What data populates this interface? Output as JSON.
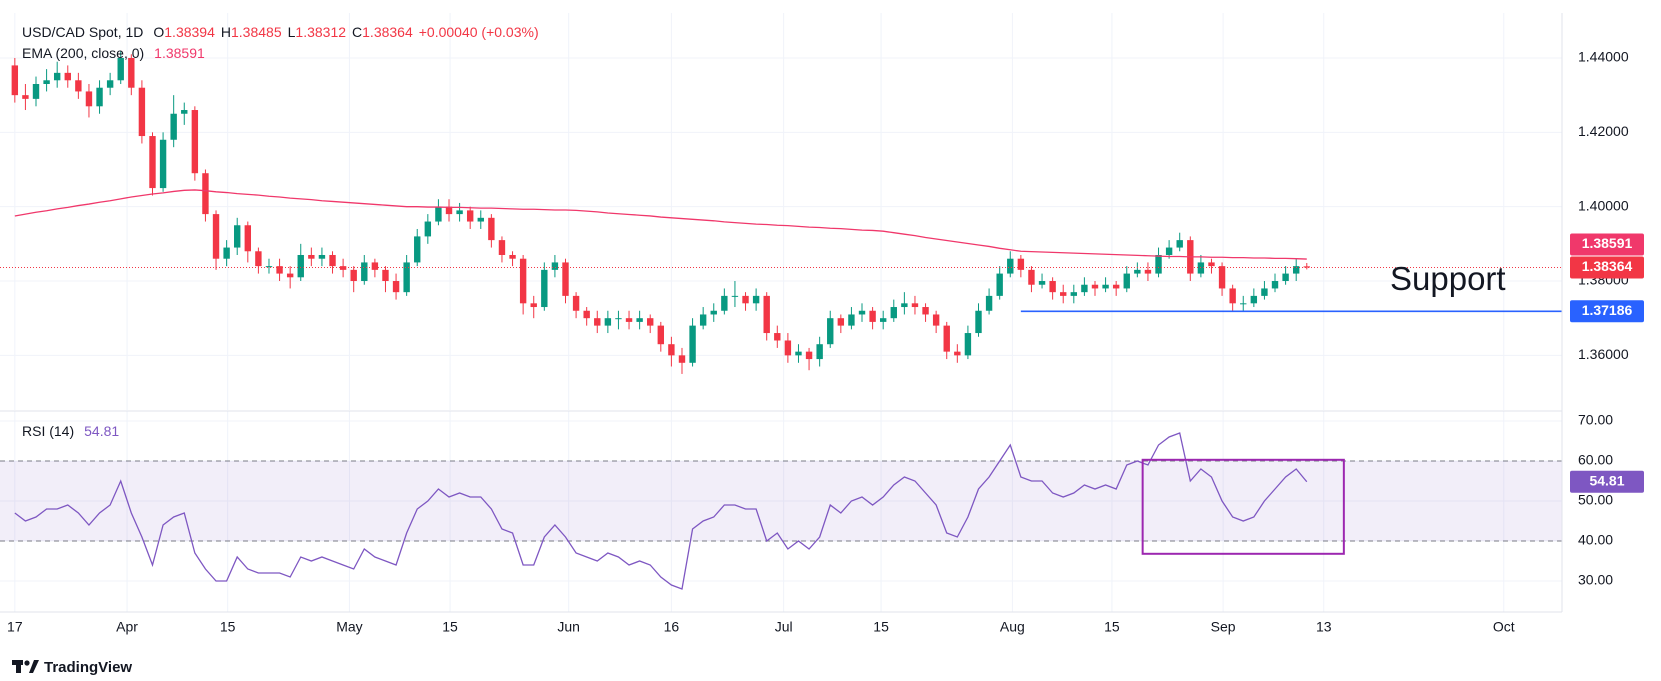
{
  "chart_data": {
    "type": "candlestick",
    "title": "USD/CAD Spot, 1D",
    "ohlc_labels": [
      "O",
      "H",
      "L",
      "C"
    ],
    "change": "+0.00040 (+0.03%)",
    "color_up": "#089981",
    "color_down": "#f23645",
    "grid": true,
    "xlim": [
      -1.4,
      146.1
    ],
    "xticks": [
      {
        "value": 0,
        "label": "17"
      },
      {
        "value": 10.6,
        "label": "Apr"
      },
      {
        "value": 20.1,
        "label": "15"
      },
      {
        "value": 31.6,
        "label": "May"
      },
      {
        "value": 41.1,
        "label": "15"
      },
      {
        "value": 52.3,
        "label": "Jun"
      },
      {
        "value": 62,
        "label": "16"
      },
      {
        "value": 72.6,
        "label": "Jul"
      },
      {
        "value": 81.8,
        "label": "15"
      },
      {
        "value": 94.2,
        "label": "Aug"
      },
      {
        "value": 103.6,
        "label": "15"
      },
      {
        "value": 114.1,
        "label": "Sep"
      },
      {
        "value": 123.6,
        "label": "13"
      },
      {
        "value": 140.6,
        "label": "Oct"
      }
    ],
    "ylim": [
      1.3453,
      1.4521
    ],
    "yticks": [
      {
        "value": 1.44,
        "label": "1.44000"
      },
      {
        "value": 1.42,
        "label": "1.42000"
      },
      {
        "value": 1.4,
        "label": "1.40000"
      },
      {
        "value": 1.38,
        "label": "1.38000"
      },
      {
        "value": 1.36,
        "label": "1.36000"
      }
    ],
    "open": [
      1.438,
      1.43,
      1.429,
      1.433,
      1.434,
      1.436,
      1.434,
      1.431,
      1.427,
      1.432,
      1.434,
      1.44,
      1.432,
      1.419,
      1.405,
      1.418,
      1.425,
      1.426,
      1.409,
      1.398,
      1.386,
      1.389,
      1.395,
      1.388,
      1.384,
      1.384,
      1.382,
      1.381,
      1.387,
      1.386,
      1.387,
      1.384,
      1.383,
      1.38,
      1.385,
      1.383,
      1.38,
      1.377,
      1.385,
      1.392,
      1.396,
      1.4,
      1.398,
      1.399,
      1.396,
      1.397,
      1.391,
      1.387,
      1.386,
      1.374,
      1.373,
      1.383,
      1.385,
      1.376,
      1.372,
      1.37,
      1.368,
      1.37,
      1.37,
      1.369,
      1.37,
      1.368,
      1.363,
      1.36,
      1.358,
      1.368,
      1.371,
      1.372,
      1.376,
      1.376,
      1.374,
      1.376,
      1.366,
      1.364,
      1.36,
      1.361,
      1.359,
      1.363,
      1.37,
      1.368,
      1.371,
      1.372,
      1.369,
      1.37,
      1.373,
      1.374,
      1.373,
      1.371,
      1.368,
      1.361,
      1.36,
      1.366,
      1.372,
      1.376,
      1.382,
      1.386,
      1.383,
      1.379,
      1.38,
      1.377,
      1.376,
      1.377,
      1.379,
      1.378,
      1.379,
      1.378,
      1.382,
      1.383,
      1.382,
      1.387,
      1.389,
      1.391,
      1.382,
      1.385,
      1.384,
      1.378,
      1.374,
      1.374,
      1.376,
      1.378,
      1.38,
      1.382,
      1.38394
    ],
    "high": [
      1.44,
      1.433,
      1.435,
      1.437,
      1.439,
      1.438,
      1.436,
      1.433,
      1.434,
      1.436,
      1.442,
      1.441,
      1.434,
      1.42,
      1.42,
      1.43,
      1.428,
      1.427,
      1.41,
      1.399,
      1.391,
      1.397,
      1.396,
      1.389,
      1.386,
      1.386,
      1.384,
      1.39,
      1.389,
      1.389,
      1.388,
      1.386,
      1.384,
      1.387,
      1.386,
      1.384,
      1.382,
      1.387,
      1.394,
      1.398,
      1.402,
      1.402,
      1.401,
      1.4,
      1.399,
      1.398,
      1.392,
      1.388,
      1.387,
      1.376,
      1.385,
      1.387,
      1.386,
      1.377,
      1.373,
      1.372,
      1.372,
      1.372,
      1.372,
      1.372,
      1.371,
      1.369,
      1.365,
      1.362,
      1.37,
      1.373,
      1.374,
      1.378,
      1.38,
      1.377,
      1.378,
      1.377,
      1.368,
      1.366,
      1.363,
      1.362,
      1.365,
      1.372,
      1.371,
      1.373,
      1.374,
      1.373,
      1.372,
      1.375,
      1.377,
      1.376,
      1.374,
      1.372,
      1.369,
      1.363,
      1.368,
      1.374,
      1.378,
      1.384,
      1.388,
      1.387,
      1.384,
      1.382,
      1.381,
      1.379,
      1.379,
      1.381,
      1.38,
      1.381,
      1.38,
      1.384,
      1.385,
      1.385,
      1.389,
      1.391,
      1.393,
      1.392,
      1.387,
      1.386,
      1.385,
      1.379,
      1.376,
      1.378,
      1.38,
      1.382,
      1.384,
      1.386,
      1.38485
    ],
    "low": [
      1.428,
      1.426,
      1.427,
      1.431,
      1.432,
      1.432,
      1.429,
      1.424,
      1.425,
      1.43,
      1.433,
      1.43,
      1.417,
      1.403,
      1.404,
      1.416,
      1.422,
      1.407,
      1.396,
      1.383,
      1.384,
      1.387,
      1.385,
      1.382,
      1.382,
      1.38,
      1.378,
      1.38,
      1.384,
      1.384,
      1.382,
      1.381,
      1.377,
      1.379,
      1.381,
      1.377,
      1.375,
      1.376,
      1.384,
      1.39,
      1.395,
      1.396,
      1.396,
      1.394,
      1.394,
      1.389,
      1.385,
      1.384,
      1.371,
      1.37,
      1.372,
      1.381,
      1.374,
      1.37,
      1.368,
      1.366,
      1.366,
      1.367,
      1.367,
      1.367,
      1.366,
      1.361,
      1.357,
      1.355,
      1.357,
      1.367,
      1.369,
      1.371,
      1.373,
      1.372,
      1.372,
      1.364,
      1.362,
      1.358,
      1.358,
      1.356,
      1.357,
      1.362,
      1.366,
      1.367,
      1.369,
      1.367,
      1.367,
      1.369,
      1.371,
      1.371,
      1.369,
      1.366,
      1.359,
      1.358,
      1.359,
      1.365,
      1.371,
      1.375,
      1.381,
      1.381,
      1.377,
      1.378,
      1.375,
      1.374,
      1.374,
      1.376,
      1.376,
      1.377,
      1.376,
      1.377,
      1.381,
      1.38,
      1.381,
      1.386,
      1.388,
      1.38,
      1.381,
      1.382,
      1.376,
      1.372,
      1.372,
      1.373,
      1.375,
      1.377,
      1.379,
      1.38,
      1.38312
    ],
    "close": [
      1.43,
      1.429,
      1.433,
      1.434,
      1.436,
      1.434,
      1.431,
      1.427,
      1.432,
      1.434,
      1.44,
      1.432,
      1.419,
      1.405,
      1.418,
      1.425,
      1.426,
      1.409,
      1.398,
      1.386,
      1.389,
      1.395,
      1.388,
      1.384,
      1.384,
      1.382,
      1.381,
      1.387,
      1.386,
      1.387,
      1.384,
      1.383,
      1.38,
      1.385,
      1.383,
      1.38,
      1.377,
      1.385,
      1.392,
      1.396,
      1.4,
      1.398,
      1.399,
      1.396,
      1.397,
      1.391,
      1.387,
      1.386,
      1.374,
      1.373,
      1.383,
      1.385,
      1.376,
      1.372,
      1.37,
      1.368,
      1.37,
      1.37,
      1.369,
      1.37,
      1.368,
      1.363,
      1.36,
      1.358,
      1.368,
      1.371,
      1.372,
      1.376,
      1.376,
      1.374,
      1.376,
      1.366,
      1.364,
      1.36,
      1.361,
      1.359,
      1.363,
      1.37,
      1.368,
      1.371,
      1.372,
      1.369,
      1.37,
      1.373,
      1.374,
      1.373,
      1.371,
      1.368,
      1.361,
      1.36,
      1.366,
      1.372,
      1.376,
      1.382,
      1.386,
      1.383,
      1.379,
      1.38,
      1.377,
      1.376,
      1.377,
      1.379,
      1.378,
      1.379,
      1.378,
      1.382,
      1.383,
      1.382,
      1.387,
      1.389,
      1.391,
      1.382,
      1.385,
      1.384,
      1.378,
      1.374,
      1.374,
      1.376,
      1.378,
      1.38,
      1.382,
      1.384,
      1.38364
    ],
    "ema": {
      "name": "EMA (200, close, 0)",
      "color": "#f0386b",
      "values": [
        1.3975,
        1.398,
        1.3985,
        1.3989,
        1.3994,
        1.3998,
        1.4003,
        1.4007,
        1.4012,
        1.4016,
        1.4021,
        1.4026,
        1.403,
        1.4034,
        1.4037,
        1.4041,
        1.4044,
        1.4045,
        1.4043,
        1.404,
        1.4038,
        1.4035,
        1.4033,
        1.4031,
        1.4028,
        1.4026,
        1.4023,
        1.4021,
        1.4019,
        1.4016,
        1.4014,
        1.4012,
        1.401,
        1.4008,
        1.4006,
        1.4004,
        1.4002,
        1.4,
        1.4,
        1.3999,
        1.3999,
        1.3998,
        1.3998,
        1.3997,
        1.3996,
        1.3996,
        1.3995,
        1.3994,
        1.3993,
        1.3993,
        1.3992,
        1.3991,
        1.3991,
        1.399,
        1.3988,
        1.3986,
        1.3983,
        1.3981,
        1.3979,
        1.3977,
        1.3975,
        1.3972,
        1.397,
        1.3968,
        1.3966,
        1.3964,
        1.3962,
        1.3959,
        1.3957,
        1.3955,
        1.3953,
        1.3952,
        1.395,
        1.3949,
        1.3947,
        1.3945,
        1.3944,
        1.3942,
        1.3941,
        1.3939,
        1.3937,
        1.3936,
        1.3934,
        1.393,
        1.3926,
        1.3922,
        1.3917,
        1.3913,
        1.3909,
        1.3905,
        1.3901,
        1.3897,
        1.3893,
        1.3888,
        1.3884,
        1.388,
        1.3879,
        1.3878,
        1.3877,
        1.3876,
        1.3875,
        1.3874,
        1.3873,
        1.3872,
        1.3871,
        1.387,
        1.3869,
        1.3868,
        1.3867,
        1.3866,
        1.3866,
        1.3865,
        1.3865,
        1.3864,
        1.3864,
        1.3863,
        1.3863,
        1.3862,
        1.3862,
        1.3861,
        1.3861,
        1.386,
        1.38591
      ]
    },
    "support": {
      "label": "Support",
      "value": 1.37186,
      "x_start": 95,
      "color": "#2962ff"
    },
    "rsi": {
      "type": "line",
      "name": "RSI (14)",
      "color": "#7e57c2",
      "ylim": [
        22.25,
        72.5
      ],
      "yticks": [
        {
          "value": 70,
          "label": "70.00"
        },
        {
          "value": 60,
          "label": "60.00"
        },
        {
          "value": 50,
          "label": "50.00"
        },
        {
          "value": 40,
          "label": "40.00"
        },
        {
          "value": 30,
          "label": "30.00"
        }
      ],
      "band": [
        40,
        60
      ],
      "highlight_box": {
        "x": [
          106.5,
          125.5
        ],
        "y": [
          36.8,
          60.3
        ],
        "color": "#9c27b0"
      },
      "values": [
        47,
        45,
        46,
        48,
        48,
        49,
        47,
        44,
        47,
        49,
        55,
        47,
        41,
        34,
        44,
        46,
        47,
        37,
        33,
        30,
        30,
        36,
        33,
        32,
        32,
        32,
        31,
        36,
        35,
        36,
        35,
        34,
        33,
        38,
        36,
        35,
        34,
        42,
        48,
        50,
        53,
        51,
        52,
        51,
        51,
        48,
        43,
        42,
        34,
        34,
        41,
        44,
        41,
        37,
        36,
        35,
        37,
        36,
        34,
        35,
        34,
        31,
        29,
        28,
        43,
        45,
        46,
        49,
        49,
        48,
        48,
        40,
        42,
        38,
        40,
        38,
        41,
        49,
        47,
        50,
        51,
        49,
        51,
        54,
        56,
        55,
        52,
        49,
        42,
        41,
        46,
        53,
        56,
        60,
        64,
        56,
        55,
        55,
        52,
        51,
        52,
        54,
        53,
        54,
        53,
        59,
        60,
        59,
        64,
        66,
        67,
        55,
        58,
        56,
        50,
        46,
        45,
        46,
        50,
        53,
        56,
        58,
        54.81
      ]
    },
    "footer": "TradingView"
  }
}
